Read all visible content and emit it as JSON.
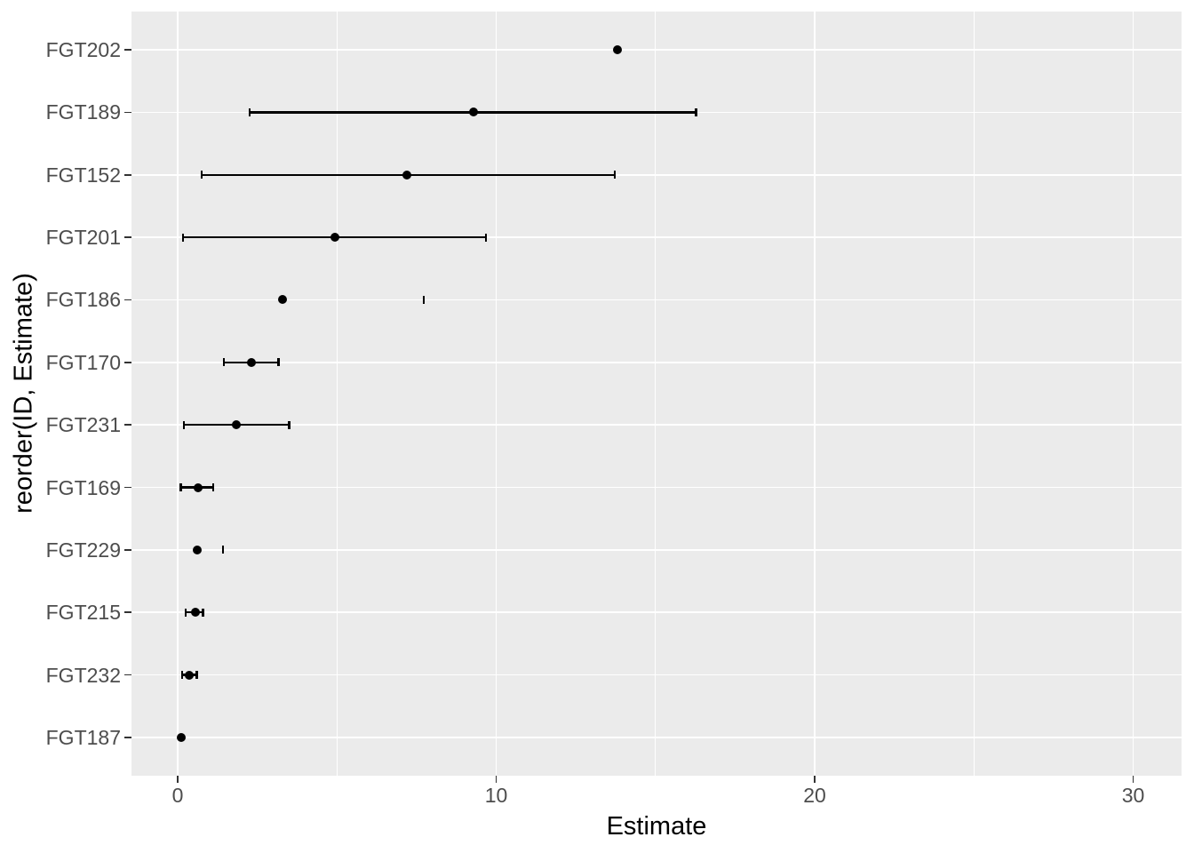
{
  "chart_data": {
    "type": "scatter",
    "subtype": "dot-plot-with-horizontal-errorbars",
    "title": "",
    "xlabel": "Estimate",
    "ylabel": "reorder(ID, Estimate)",
    "x_major_ticks": [
      0,
      10,
      20,
      30
    ],
    "x_minor_gridlines": [
      5,
      15,
      25
    ],
    "xlim": [
      -1.45,
      31.52
    ],
    "grid": "on",
    "legend": "none",
    "categories": [
      "FGT202",
      "FGT189",
      "FGT152",
      "FGT201",
      "FGT186",
      "FGT170",
      "FGT231",
      "FGT169",
      "FGT229",
      "FGT215",
      "FGT232",
      "FGT187"
    ],
    "series": [
      {
        "id": "FGT202",
        "estimate": 13.8,
        "low": null,
        "high": null,
        "has_line": false
      },
      {
        "id": "FGT189",
        "estimate": 9.3,
        "low": 2.26,
        "high": 16.27,
        "has_line": true
      },
      {
        "id": "FGT152",
        "estimate": 7.2,
        "low": 0.75,
        "high": 13.73,
        "has_line": true
      },
      {
        "id": "FGT201",
        "estimate": 4.93,
        "low": 0.17,
        "high": 9.68,
        "has_line": true
      },
      {
        "id": "FGT186",
        "estimate": 3.29,
        "low": null,
        "high": 7.72,
        "has_line": false
      },
      {
        "id": "FGT170",
        "estimate": 2.31,
        "low": 1.45,
        "high": 3.17,
        "has_line": true
      },
      {
        "id": "FGT231",
        "estimate": 1.85,
        "low": 0.2,
        "high": 3.5,
        "has_line": true
      },
      {
        "id": "FGT169",
        "estimate": 0.63,
        "low": 0.1,
        "high": 1.12,
        "has_line": true
      },
      {
        "id": "FGT229",
        "estimate": 0.61,
        "low": null,
        "high": 1.42,
        "has_line": false
      },
      {
        "id": "FGT215",
        "estimate": 0.55,
        "low": 0.25,
        "high": 0.79,
        "has_line": true
      },
      {
        "id": "FGT232",
        "estimate": 0.36,
        "low": 0.14,
        "high": 0.6,
        "has_line": true
      },
      {
        "id": "FGT187",
        "estimate": 0.12,
        "low": null,
        "high": null,
        "has_line": false
      }
    ],
    "colors": {
      "panel_background": "#EBEBEB",
      "gridline": "#FFFFFF",
      "marker": "#000000",
      "errorbar": "#000000",
      "tick_text": "#4D4D4D",
      "title_text": "#000000",
      "tick_mark": "#333333",
      "figure_background": "#FFFFFF"
    }
  }
}
